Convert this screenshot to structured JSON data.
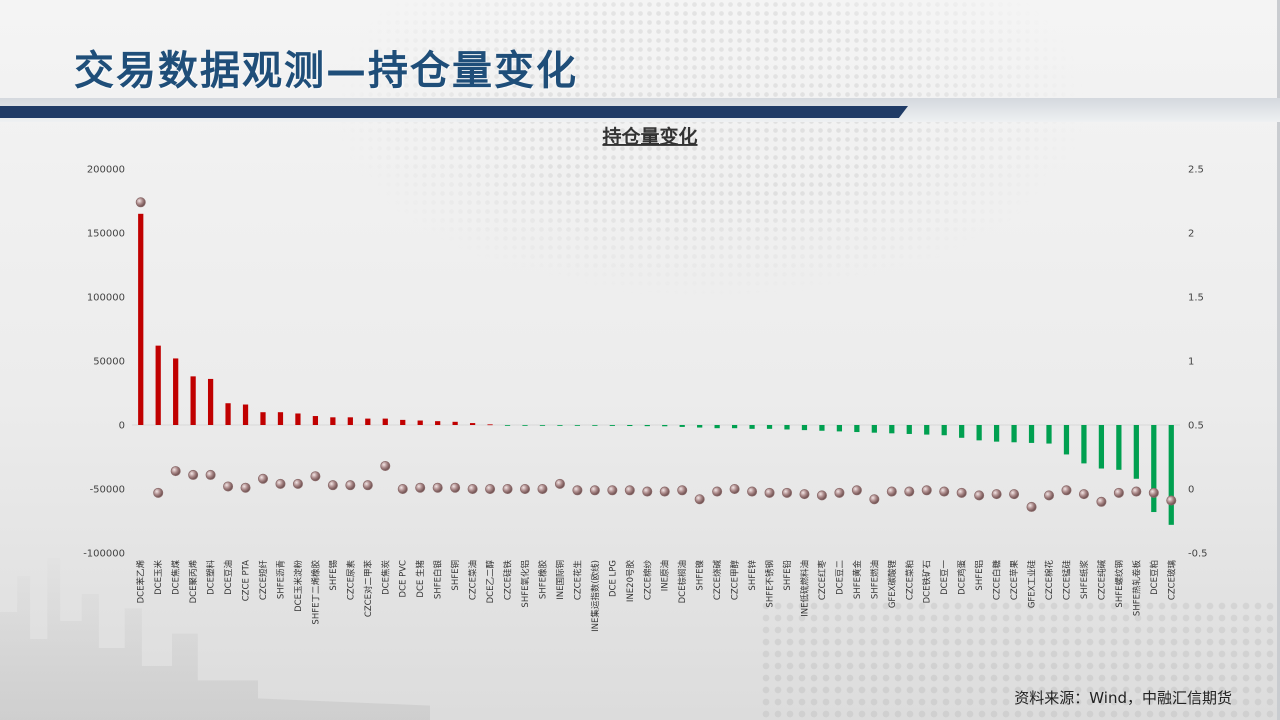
{
  "page": {
    "title": "交易数据观测—持仓量变化",
    "source": "资料来源：Wind，中融汇信期货"
  },
  "colors": {
    "title": "#1f4e79",
    "positive_bar": "#c00000",
    "negative_bar": "#00a050",
    "marker": "#8a6a6a",
    "band": "#1f3b66"
  },
  "chart_data": {
    "type": "bar",
    "title": "持仓量变化",
    "grid": false,
    "legend": "none",
    "ylim": [
      -100000,
      200000
    ],
    "yticks": [
      -100000,
      -50000,
      0,
      50000,
      100000,
      150000,
      200000
    ],
    "ytick_labels": [
      "-100000",
      "-50000",
      "0",
      "50000",
      "100000",
      "150000",
      "200000"
    ],
    "y2lim": [
      -0.5,
      2.5
    ],
    "y2ticks": [
      -0.5,
      0,
      0.5,
      1,
      1.5,
      2,
      2.5
    ],
    "y2tick_labels": [
      "-0.5",
      "0",
      "0.5",
      "1",
      "1.5",
      "2",
      "2.5"
    ],
    "categories": [
      "DCE苯乙烯",
      "DCE玉米",
      "DCE焦煤",
      "DCE聚丙烯",
      "DCE塑料",
      "DCE豆油",
      "CZCE PTA",
      "CZCE短纤",
      "SHFE沥青",
      "DCE玉米淀粉",
      "SHFE丁二烯橡胶",
      "SHFE锡",
      "CZCE尿素",
      "CZCE对二甲苯",
      "DCE焦炭",
      "DCE PVC",
      "DCE 生猪",
      "SHFE白银",
      "SHFE铜",
      "CZCE菜油",
      "DCE乙二醇",
      "CZCE硅铁",
      "SHFE氧化铝",
      "SHFE橡胶",
      "INE国际铜",
      "CZCE花生",
      "INE集运指数(欧线)",
      "DCE LPG",
      "INE20号胶",
      "CZCE棉纱",
      "INE原油",
      "DCE棕榈油",
      "SHFE镍",
      "CZCE烧碱",
      "CZCE甲醇",
      "SHFE锌",
      "SHFE不锈钢",
      "SHFE铅",
      "INE低硫燃料油",
      "CZCE红枣",
      "DCE豆二",
      "SHFE黄金",
      "SHFE燃油",
      "GFEX碳酸锂",
      "CZCE菜粕",
      "DCE铁矿石",
      "DCE豆一",
      "DCE鸡蛋",
      "SHFE铝",
      "CZCE白糖",
      "CZCE苹果",
      "GFEX工业硅",
      "CZCE棉花",
      "CZCE锰硅",
      "SHFE纸浆",
      "CZCE纯碱",
      "SHFE螺纹钢",
      "SHFE热轧卷板",
      "DCE豆粕",
      "CZCE玻璃"
    ],
    "series": [
      {
        "axis": "left",
        "values": [
          165000,
          62000,
          52000,
          38000,
          36000,
          17000,
          16000,
          10000,
          10000,
          9000,
          7000,
          6000,
          6000,
          5000,
          5000,
          4000,
          3500,
          3000,
          2500,
          1500,
          500,
          -200,
          -300,
          -400,
          -500,
          -500,
          -600,
          -700,
          -800,
          -900,
          -1000,
          -1500,
          -2000,
          -2500,
          -2500,
          -3000,
          -3000,
          -3500,
          -4000,
          -4500,
          -5000,
          -5500,
          -6000,
          -6500,
          -7000,
          -7500,
          -8000,
          -10000,
          -12000,
          -13000,
          -13500,
          -14000,
          -14500,
          -23000,
          -30000,
          -34000,
          -35000,
          -42000,
          -68000,
          -78000
        ]
      },
      {
        "axis": "right",
        "values": [
          2.24,
          -0.03,
          0.14,
          0.11,
          0.11,
          0.02,
          0.01,
          0.08,
          0.04,
          0.04,
          0.1,
          0.03,
          0.03,
          0.03,
          0.18,
          0.0,
          0.01,
          0.01,
          0.01,
          0.0,
          0.0,
          0.0,
          0.0,
          0.0,
          0.04,
          -0.01,
          -0.01,
          -0.01,
          -0.01,
          -0.02,
          -0.02,
          -0.01,
          -0.08,
          -0.02,
          0.0,
          -0.02,
          -0.03,
          -0.03,
          -0.04,
          -0.05,
          -0.03,
          -0.01,
          -0.08,
          -0.02,
          -0.02,
          -0.01,
          -0.02,
          -0.03,
          -0.05,
          -0.04,
          -0.04,
          -0.14,
          -0.05,
          -0.01,
          -0.04,
          -0.1,
          -0.03,
          -0.02,
          -0.03,
          -0.09
        ]
      }
    ]
  }
}
